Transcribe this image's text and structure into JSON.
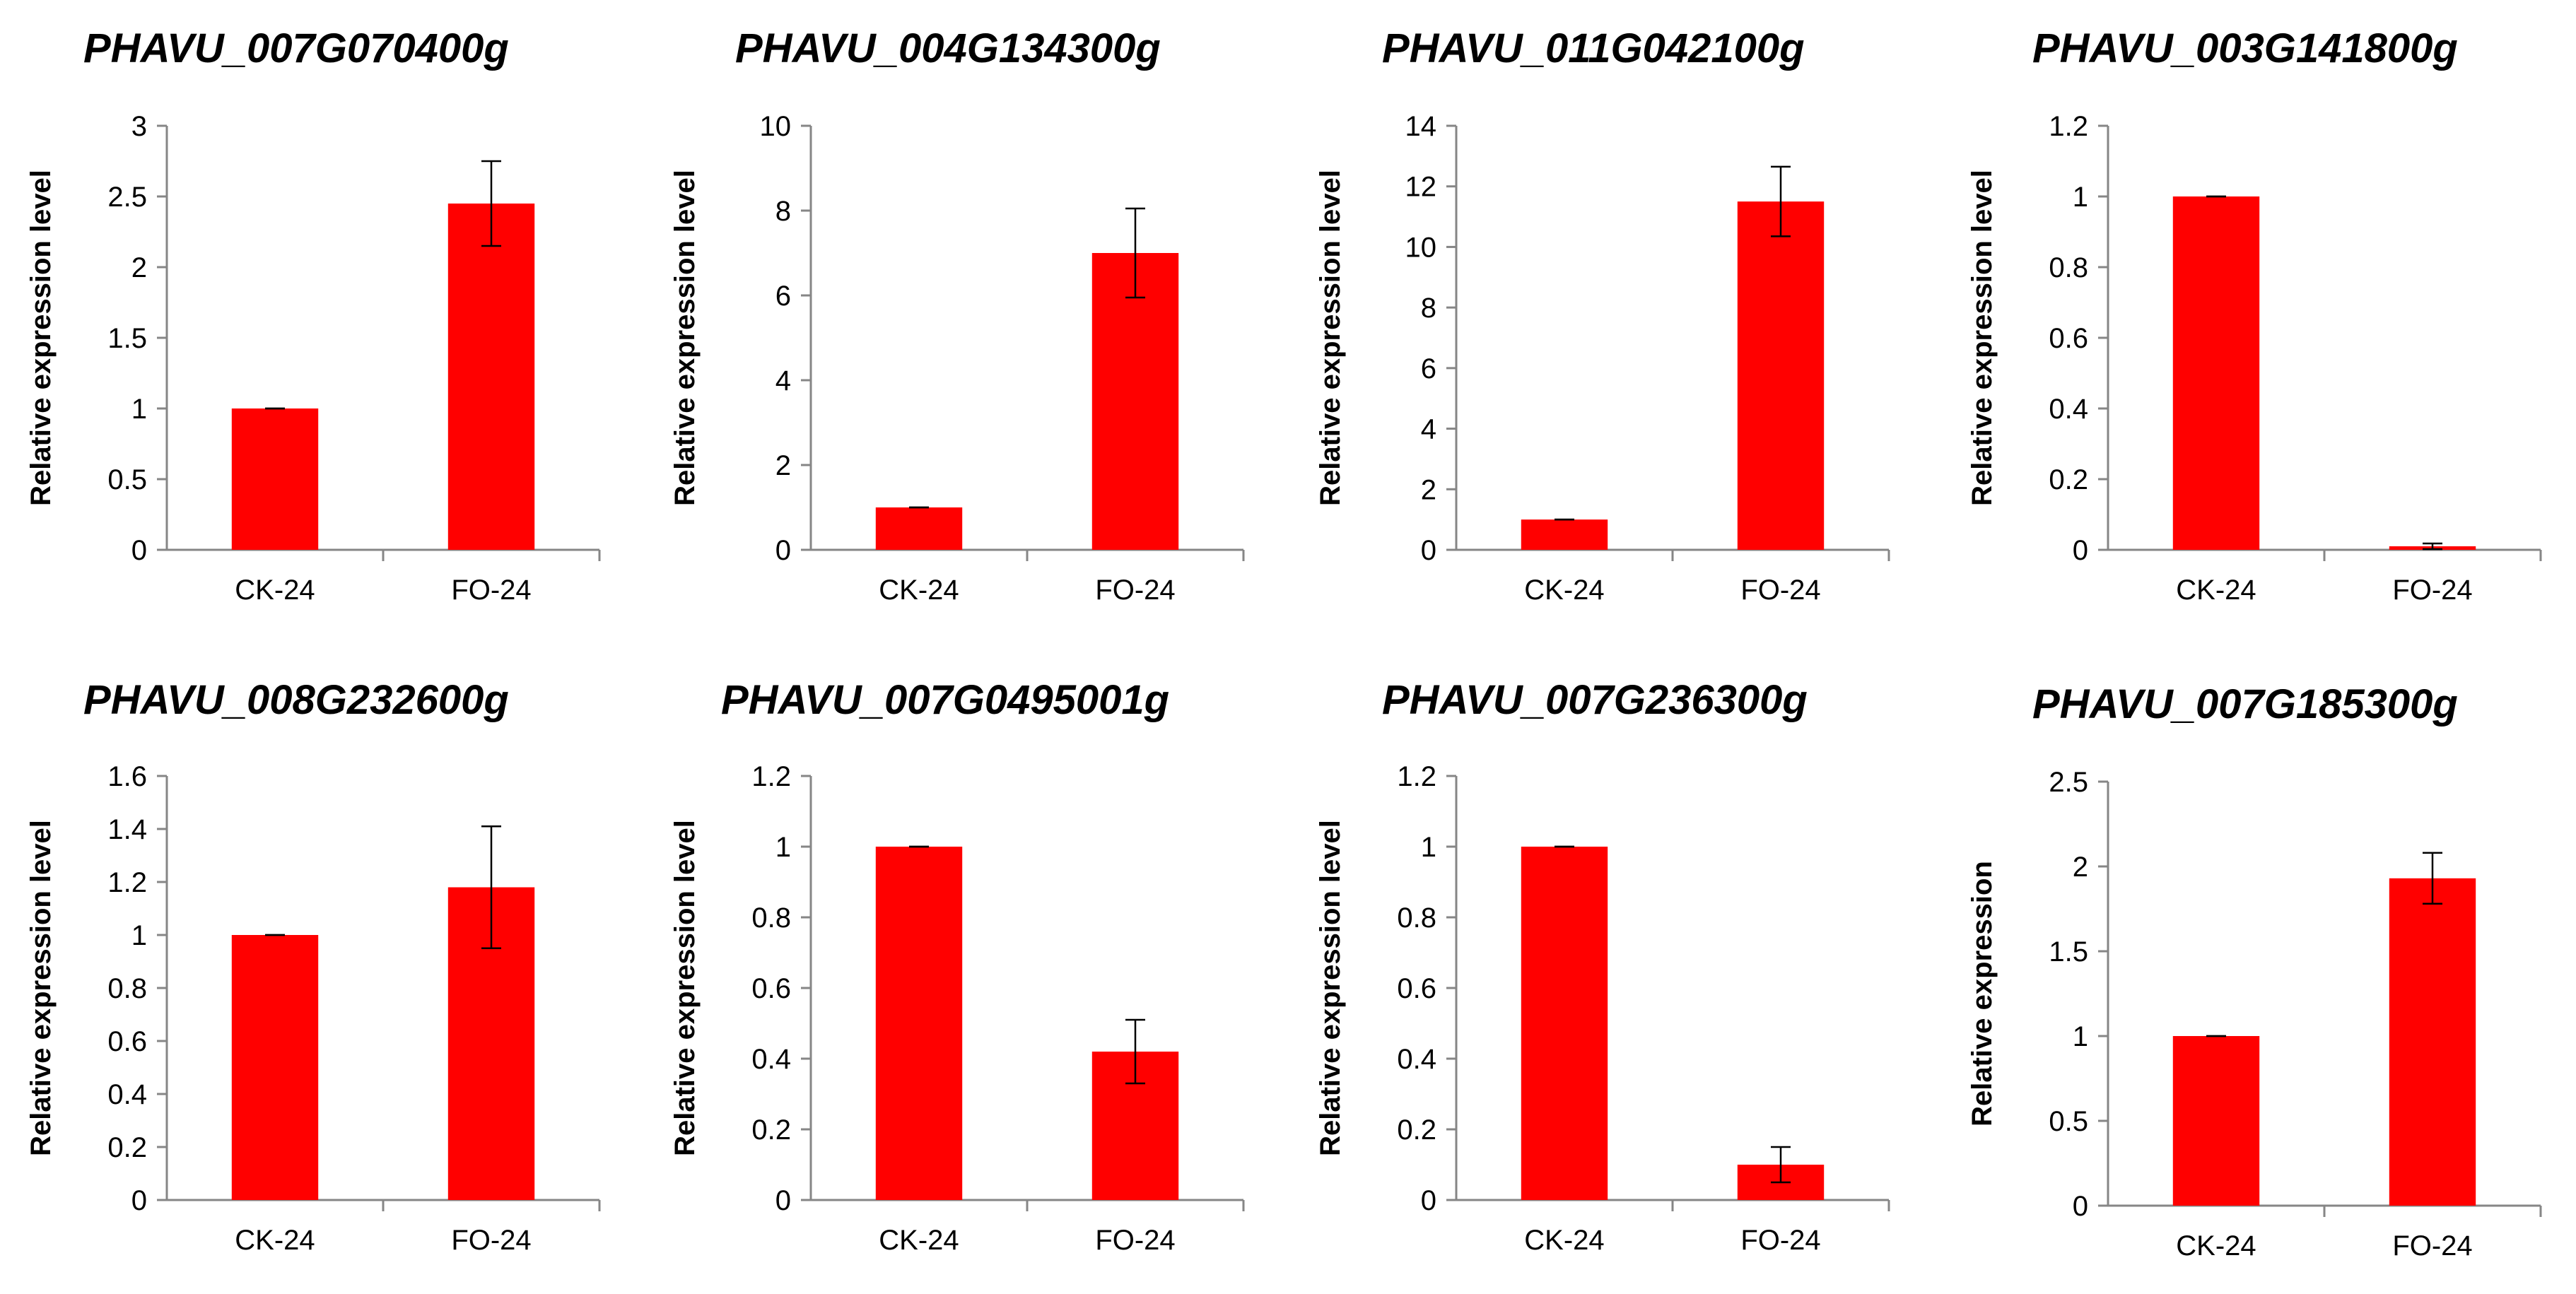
{
  "colors": {
    "bar": "#ff0000",
    "axis": "#868686",
    "error": "#000000"
  },
  "chart_data": [
    {
      "type": "bar",
      "title": "PHAVU_007G070400g",
      "ylabel": "Relative expression level",
      "xlabel": "",
      "categories": [
        "CK-24",
        "FO-24"
      ],
      "values": [
        1.0,
        2.45
      ],
      "errors": [
        0.0,
        0.3
      ],
      "ylim": [
        0,
        3
      ],
      "yticks": [
        "0",
        "0.5",
        "1",
        "1.5",
        "2",
        "2.5",
        "3"
      ],
      "grid": false
    },
    {
      "type": "bar",
      "title": "PHAVU_004G134300g",
      "ylabel": "Relative expression level",
      "xlabel": "",
      "categories": [
        "CK-24",
        "FO-24"
      ],
      "values": [
        1.0,
        7.0
      ],
      "errors": [
        0.0,
        1.05
      ],
      "ylim": [
        0,
        10
      ],
      "yticks": [
        "0",
        "2",
        "4",
        "6",
        "8",
        "10"
      ],
      "grid": false
    },
    {
      "type": "bar",
      "title": "PHAVU_011G042100g",
      "ylabel": "Relative expression level",
      "xlabel": "",
      "categories": [
        "CK-24",
        "FO-24"
      ],
      "values": [
        1.0,
        11.5
      ],
      "errors": [
        0.0,
        1.15
      ],
      "ylim": [
        0,
        14
      ],
      "yticks": [
        "0",
        "2",
        "4",
        "6",
        "8",
        "10",
        "12",
        "14"
      ],
      "grid": false
    },
    {
      "type": "bar",
      "title": "PHAVU_003G141800g",
      "ylabel": "Relative expression level",
      "xlabel": "",
      "categories": [
        "CK-24",
        "FO-24"
      ],
      "values": [
        1.0,
        0.01
      ],
      "errors": [
        0.0,
        0.008
      ],
      "ylim": [
        0,
        1.2
      ],
      "yticks": [
        "0",
        "0.2",
        "0.4",
        "0.6",
        "0.8",
        "1",
        "1.2"
      ],
      "grid": false
    },
    {
      "type": "bar",
      "title": "PHAVU_008G232600g",
      "ylabel": "Relative expression level",
      "xlabel": "",
      "categories": [
        "CK-24",
        "FO-24"
      ],
      "values": [
        1.0,
        1.18
      ],
      "errors": [
        0.0,
        0.23
      ],
      "ylim": [
        0,
        1.6
      ],
      "yticks": [
        "0",
        "0.2",
        "0.4",
        "0.6",
        "0.8",
        "1",
        "1.2",
        "1.4",
        "1.6"
      ],
      "grid": false
    },
    {
      "type": "bar",
      "title": "PHAVU_007G0495001g",
      "ylabel": "Relative expression level",
      "xlabel": "",
      "categories": [
        "CK-24",
        "FO-24"
      ],
      "values": [
        1.0,
        0.42
      ],
      "errors": [
        0.0,
        0.09
      ],
      "ylim": [
        0,
        1.2
      ],
      "yticks": [
        "0",
        "0.2",
        "0.4",
        "0.6",
        "0.8",
        "1",
        "1.2"
      ],
      "grid": false
    },
    {
      "type": "bar",
      "title": "PHAVU_007G236300g",
      "ylabel": "Relative expression level",
      "xlabel": "",
      "categories": [
        "CK-24",
        "FO-24"
      ],
      "values": [
        1.0,
        0.1
      ],
      "errors": [
        0.0,
        0.05
      ],
      "ylim": [
        0,
        1.2
      ],
      "yticks": [
        "0",
        "0.2",
        "0.4",
        "0.6",
        "0.8",
        "1",
        "1.2"
      ],
      "grid": false
    },
    {
      "type": "bar",
      "title": "PHAVU_007G185300g",
      "ylabel": "Relative expression",
      "xlabel": "",
      "categories": [
        "CK-24",
        "FO-24"
      ],
      "values": [
        1.0,
        1.93
      ],
      "errors": [
        0.0,
        0.15
      ],
      "ylim": [
        0,
        2.5
      ],
      "yticks": [
        "0",
        "0.5",
        "1",
        "1.5",
        "2",
        "2.5"
      ],
      "grid": false
    }
  ]
}
